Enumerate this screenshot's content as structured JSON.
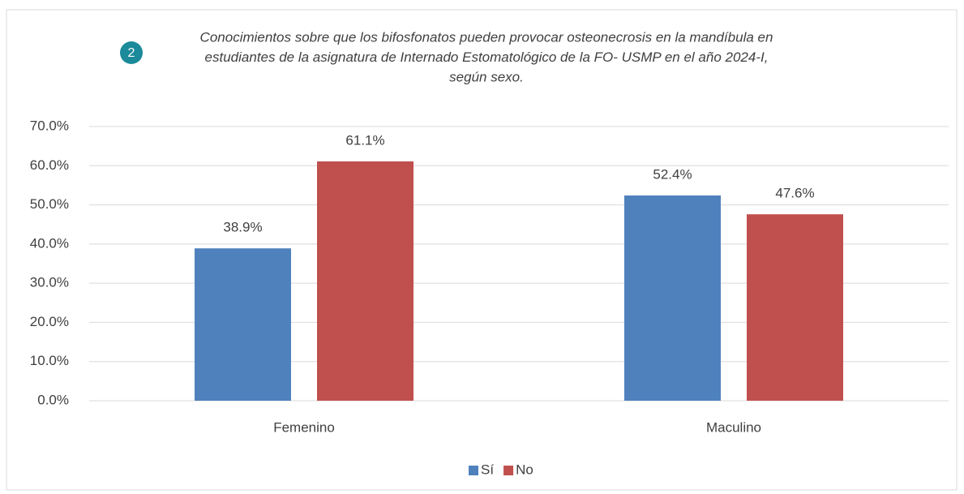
{
  "chart_data": {
    "type": "bar",
    "title": [
      "Conocimientos sobre que los bifosfonatos pueden provocar osteonecrosis en la mandíbula en",
      "estudiantes de la asignatura de Internado Estomatológico de la FO- USMP en el año 2024-I,",
      "según sexo."
    ],
    "annotations": [
      "2"
    ],
    "categories": [
      "Femenino",
      "Maculino"
    ],
    "series": [
      {
        "name": "Sí",
        "color": "#4f81bd",
        "values": [
          38.9,
          52.4
        ],
        "value_labels": [
          "38.9%",
          "52.4%"
        ]
      },
      {
        "name": "No",
        "color": "#c0504d",
        "values": [
          61.1,
          47.6
        ],
        "value_labels": [
          "61.1%",
          "47.6%"
        ]
      }
    ],
    "ylim": [
      0,
      70
    ],
    "yticks": [
      {
        "value": 0,
        "label": "0.0%"
      },
      {
        "value": 10,
        "label": "10.0%"
      },
      {
        "value": 20,
        "label": "20.0%"
      },
      {
        "value": 30,
        "label": "30.0%"
      },
      {
        "value": 40,
        "label": "40.0%"
      },
      {
        "value": 50,
        "label": "50.0%"
      },
      {
        "value": 60,
        "label": "60.0%"
      },
      {
        "value": 70,
        "label": "70.0%"
      }
    ],
    "grid": true,
    "legend": "bottom"
  }
}
